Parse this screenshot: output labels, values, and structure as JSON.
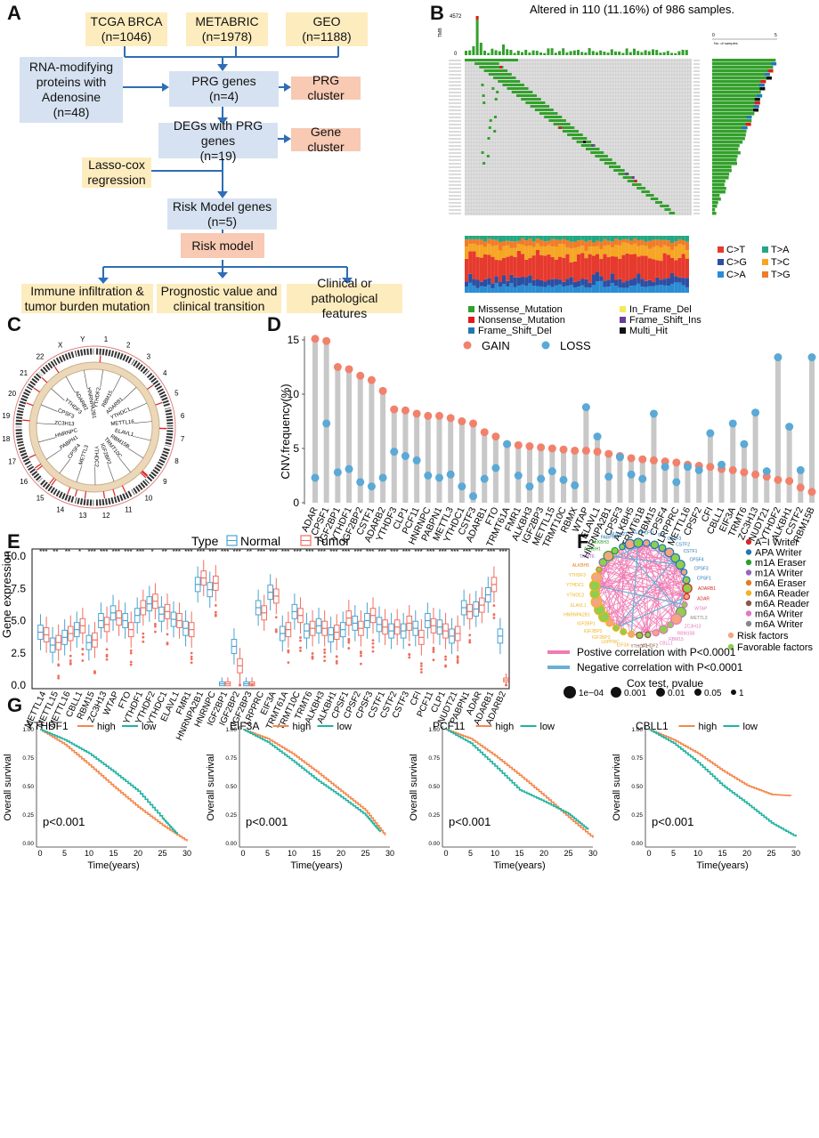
{
  "panels": {
    "a": "A",
    "b": "B",
    "c": "C",
    "d": "D",
    "e": "E",
    "f": "F",
    "g": "G"
  },
  "flowchart": {
    "tcga": "TCGA BRCA",
    "tcga_n": "(n=1046)",
    "metabric": "METABRIC",
    "metabric_n": "(n=1978)",
    "geo": "GEO",
    "geo_n": "(n=1188)",
    "rna": "RNA-modifying proteins with Adenosine",
    "rna_n": "(n=48)",
    "prg": "PRG genes",
    "prg_n": "(n=4)",
    "prg_cluster": "PRG cluster",
    "degs": "DEGs with PRG genes",
    "degs_n": "(n=19)",
    "gene_cluster": "Gene cluster",
    "lasso": "Lasso-cox regression",
    "riskgenes": "Risk Model genes",
    "riskgenes_n": "(n=5)",
    "riskmodel": "Risk model",
    "immune": "Immune infiltration & tumor burden mutation",
    "prognostic": "Prognostic value and clinical transition",
    "clinical": "Clinical or pathological features"
  },
  "oncoplot": {
    "title": "Altered in 110 (11.16%) of 986 samples.",
    "tmb_label": "TMB",
    "tmb_max": "4572",
    "tmb_min": "0",
    "side_axis_label": "No. of samples",
    "side_axis_min": "0",
    "side_axis_max": "5",
    "snv_legend": [
      {
        "label": "C>T",
        "color": "#e63a2e"
      },
      {
        "label": "T>A",
        "color": "#22a884"
      },
      {
        "label": "C>G",
        "color": "#2c4fa3"
      },
      {
        "label": "T>C",
        "color": "#f5a623"
      },
      {
        "label": "C>A",
        "color": "#2a8dd4"
      },
      {
        "label": "T>G",
        "color": "#f07c2a"
      }
    ],
    "variant_legend": [
      {
        "label": "Missense_Mutation",
        "color": "#33a02c"
      },
      {
        "label": "In_Frame_Del",
        "color": "#f3ea5b"
      },
      {
        "label": "Nonsense_Mutation",
        "color": "#e31a1c"
      },
      {
        "label": "Frame_Shift_Ins",
        "color": "#6a3d9a"
      },
      {
        "label": "Frame_Shift_Del",
        "color": "#1f78b4"
      },
      {
        "label": "Multi_Hit",
        "color": "#111111"
      }
    ]
  },
  "circos": {
    "chromosomes": [
      "1",
      "2",
      "3",
      "4",
      "5",
      "6",
      "7",
      "8",
      "9",
      "10",
      "11",
      "12",
      "13",
      "14",
      "15",
      "16",
      "17",
      "18",
      "19",
      "20",
      "21",
      "22",
      "X",
      "Y"
    ],
    "genes": [
      "YTHDF2",
      "RBM15",
      "ADARB1",
      "YTHDC1",
      "METTL16",
      "ELAVL1",
      "RBM15B",
      "TRMT10C",
      "IGF2BP2",
      "YTHDC2",
      "METTL3",
      "CPSF4",
      "PABPN1",
      "HNRNPC",
      "ZC3H13",
      "CPSF3",
      "YTHDF3",
      "ADARB2",
      "HNRNPA2B1"
    ]
  },
  "chart_data": [
    {
      "type": "lollipop",
      "ylabel": "CNV.frequency(%)",
      "ylim": [
        0,
        15
      ],
      "yticks": [
        0,
        5,
        10,
        15
      ],
      "legend": [
        {
          "label": "GAIN",
          "color": "#f2816c"
        },
        {
          "label": "LOSS",
          "color": "#5aa9d6"
        }
      ],
      "categories": [
        "ADAR",
        "CPSF1",
        "IGF2BP1",
        "YTHDF1",
        "IGF2BP2",
        "CSTF1",
        "ADARB2",
        "YTHDF3",
        "CLP1",
        "PCF11",
        "HNRNPC",
        "PABPN1",
        "METTL3",
        "YTHDC1",
        "CSTF3",
        "ADARB1",
        "FTO",
        "TRMT61A",
        "FMR1",
        "ALKBH3",
        "IGF2BP3",
        "METTL15",
        "TRMT10C",
        "RBMX",
        "WTAP",
        "ELAVL1",
        "HNRNPA2B1",
        "CPSF3",
        "ALKBH5",
        "TRMT61B",
        "RBM15",
        "CPSF4",
        "LRPPRC",
        "METTL16",
        "CPSF2",
        "CFI",
        "CBLL1",
        "EIF3A",
        "TRMT6",
        "ZC3H13",
        "NUDT21",
        "YTHDF2",
        "ALKBH1",
        "CSTF2",
        "RBM15B"
      ],
      "series": [
        {
          "name": "GAIN",
          "values": [
            15.1,
            14.9,
            12.5,
            12.3,
            11.7,
            11.3,
            10.3,
            8.6,
            8.5,
            8.2,
            8.0,
            8.0,
            7.8,
            7.5,
            7.3,
            6.5,
            6.1,
            5.4,
            5.3,
            5.2,
            5.1,
            5.0,
            4.9,
            4.8,
            4.8,
            4.7,
            4.5,
            4.3,
            4.1,
            4.0,
            3.9,
            3.8,
            3.7,
            3.5,
            3.4,
            3.3,
            3.1,
            3.0,
            2.8,
            2.6,
            2.4,
            2.1,
            2.0,
            1.4,
            1.0
          ]
        },
        {
          "name": "LOSS",
          "values": [
            2.3,
            7.3,
            2.8,
            3.1,
            1.9,
            1.5,
            2.3,
            4.7,
            4.3,
            3.9,
            2.5,
            2.3,
            2.6,
            1.5,
            0.6,
            2.2,
            3.2,
            5.4,
            2.5,
            1.5,
            2.2,
            2.9,
            2.1,
            1.6,
            8.8,
            6.1,
            2.4,
            4.2,
            2.6,
            2.2,
            8.2,
            3.3,
            1.9,
            3.3,
            3.0,
            6.4,
            3.5,
            7.3,
            5.4,
            8.3,
            2.9,
            13.4,
            7.0,
            3.0,
            13.4
          ]
        }
      ]
    },
    {
      "type": "box",
      "ylabel": "Gene expression",
      "ylim": [
        0,
        10
      ],
      "yticks": [
        "0.0",
        "2.5",
        "5.0",
        "7.5",
        "10.0"
      ],
      "legend_title": "Type",
      "legend": [
        {
          "label": "Normal",
          "color": "#4aa3d3"
        },
        {
          "label": "Tumor",
          "color": "#f06f5f"
        }
      ],
      "categories": [
        "METTL14",
        "METTL15",
        "METTL16",
        "CBLL1",
        "RBM15",
        "ZC3H13",
        "WTAP",
        "FTO",
        "YTHDF1",
        "YTHDF2",
        "YTHDC1",
        "ELAVL1",
        "FMR1",
        "HNRNPA2B1",
        "HNRNPC",
        "IGF2BP1",
        "IGF2BP2",
        "IGF2BP3",
        "LRPPRC",
        "EIF3A",
        "TRMT61A",
        "TRMT10C",
        "TRMT6",
        "ALKBH3",
        "ALKBH1",
        "CPSF1",
        "CPSF2",
        "CPSF3",
        "CSTF1",
        "CSTF2",
        "CSTF3",
        "CFI",
        "PCF11",
        "CLP1",
        "NUDT21",
        "PABPN1",
        "ADAR",
        "ADARB1",
        "ADARB2"
      ],
      "significance": [
        "***",
        "**",
        "**",
        "*",
        "***",
        "***",
        "***",
        "***",
        "***",
        "*",
        "**",
        "***",
        "***",
        "***",
        "***",
        "***",
        "***",
        "**",
        "***",
        "***",
        "***",
        "***",
        "***",
        "***",
        "***",
        "***",
        "***",
        "***",
        "***",
        "***",
        "***",
        "***",
        "***",
        "***",
        "***",
        "***",
        "***",
        "***",
        "***"
      ],
      "normal_median": [
        4.1,
        3.1,
        3.7,
        4.3,
        3.3,
        5.0,
        5.6,
        5.0,
        5.4,
        6.3,
        5.5,
        5.1,
        4.4,
        7.8,
        7.4,
        0.1,
        3.0,
        0.1,
        6.0,
        7.2,
        4.0,
        5.7,
        4.2,
        4.6,
        3.9,
        4.3,
        4.8,
        5.0,
        4.7,
        4.2,
        4.2,
        4.4,
        5.0,
        4.5,
        3.8,
        6.0,
        5.9,
        7.0,
        3.8
      ],
      "tumor_median": [
        3.9,
        3.3,
        4.0,
        4.6,
        3.5,
        4.7,
        5.2,
        4.3,
        6.0,
        6.5,
        5.7,
        5.0,
        4.3,
        8.3,
        7.9,
        0.1,
        1.5,
        0.1,
        5.6,
        6.9,
        4.3,
        5.4,
        4.4,
        4.4,
        4.1,
        5.2,
        4.4,
        5.4,
        4.5,
        4.5,
        4.8,
        3.7,
        4.6,
        4.2,
        4.0,
        5.7,
        6.2,
        7.8,
        0.4
      ]
    }
  ],
  "network": {
    "legend": [
      {
        "label": "A−I Writer",
        "color": "#d62728"
      },
      {
        "label": "APA Writer",
        "color": "#1f77b4"
      },
      {
        "label": "m1A Eraser",
        "color": "#2ca02c"
      },
      {
        "label": "m1A Writer",
        "color": "#9467bd"
      },
      {
        "label": "m6A Eraser",
        "color": "#e57c1f"
      },
      {
        "label": "m6A Reader",
        "color": "#f0b323"
      },
      {
        "label": "m6A Reader",
        "color": "#8c564b"
      },
      {
        "label": "m6A Writer",
        "color": "#e377c2"
      },
      {
        "label": "m6A Writer",
        "color": "#888888"
      }
    ],
    "factors": [
      {
        "label": "Risk factors",
        "color": "#f4a582"
      },
      {
        "label": "Favorable factors",
        "color": "#8fce4e"
      }
    ],
    "pos_corr": "Postive correlation with P<0.0001",
    "neg_corr": "Negative correlation with P<0.0001",
    "cox_title": "Cox test, pvalue",
    "cox_sizes": [
      "1e−04",
      "0.001",
      "0.01",
      "0.05",
      "1"
    ],
    "nodes": [
      {
        "label": "PCF11",
        "color": "#1f77b4"
      },
      {
        "label": "CFI",
        "color": "#1f77b4"
      },
      {
        "label": "CSTF3",
        "color": "#1f77b4"
      },
      {
        "label": "CSTF2",
        "color": "#1f77b4"
      },
      {
        "label": "CSTF1",
        "color": "#1f77b4"
      },
      {
        "label": "CPSF4",
        "color": "#1f77b4"
      },
      {
        "label": "CPSF3",
        "color": "#1f77b4"
      },
      {
        "label": "CPSF1",
        "color": "#1f77b4"
      },
      {
        "label": "ADARB1",
        "color": "#d62728"
      },
      {
        "label": "ADAR",
        "color": "#d62728"
      },
      {
        "label": "WTAP",
        "color": "#e377c2"
      },
      {
        "label": "METTL3",
        "color": "#888888"
      },
      {
        "label": "ZC3H13",
        "color": "#e377c2"
      },
      {
        "label": "RBM15B",
        "color": "#e377c2"
      },
      {
        "label": "RBM15",
        "color": "#e377c2"
      },
      {
        "label": "CBLL1",
        "color": "#e377c2"
      },
      {
        "label": "YTHDF2",
        "color": "#8c564b"
      },
      {
        "label": "YTHDF1",
        "color": "#8c564b"
      },
      {
        "label": "EIF3A",
        "color": "#f0b323"
      },
      {
        "label": "LRPPRC",
        "color": "#f0b323"
      },
      {
        "label": "IGF2BP3",
        "color": "#f0b323"
      },
      {
        "label": "IGF2BP2",
        "color": "#f0b323"
      },
      {
        "label": "IGF2BP1",
        "color": "#f0b323"
      },
      {
        "label": "HNRNPA2B1",
        "color": "#f0b323"
      },
      {
        "label": "ELAVL1",
        "color": "#f0b323"
      },
      {
        "label": "YTHDC2",
        "color": "#f0b323"
      },
      {
        "label": "YTHDC1",
        "color": "#f0b323"
      },
      {
        "label": "YTHDF3",
        "color": "#f0b323"
      },
      {
        "label": "ALKBH5",
        "color": "#e57c1f"
      },
      {
        "label": "TRMT6",
        "color": "#9467bd"
      },
      {
        "label": "ALKBH1",
        "color": "#2ca02c"
      },
      {
        "label": "ALKBH3",
        "color": "#2ca02c"
      },
      {
        "label": "PABPN1",
        "color": "#1f77b4"
      },
      {
        "label": "NUDT21",
        "color": "#1f77b4"
      },
      {
        "label": "CLP1",
        "color": "#1f77b4"
      }
    ]
  },
  "survival": {
    "ylabel": "Overall survival",
    "xlabel": "Time(years)",
    "pvalue": "p<0.001",
    "yticks": [
      "0.00",
      "0.25",
      "0.50",
      "0.75",
      "1.00"
    ],
    "xticks": [
      "0",
      "5",
      "10",
      "15",
      "20",
      "25",
      "30"
    ],
    "high_label": "high",
    "low_label": "low",
    "high_color": "#f4874b",
    "low_color": "#20b2a0",
    "plots": [
      {
        "gene": "YTHDF1",
        "high": [
          [
            0,
            1
          ],
          [
            5,
            0.87
          ],
          [
            10,
            0.69
          ],
          [
            15,
            0.5
          ],
          [
            20,
            0.32
          ],
          [
            25,
            0.16
          ],
          [
            30,
            0.02
          ]
        ],
        "low": [
          [
            0,
            1
          ],
          [
            5,
            0.91
          ],
          [
            10,
            0.79
          ],
          [
            15,
            0.63
          ],
          [
            20,
            0.46
          ],
          [
            25,
            0.22
          ],
          [
            28,
            0.08
          ]
        ]
      },
      {
        "gene": "EIF3A",
        "high": [
          [
            0,
            1
          ],
          [
            5,
            0.92
          ],
          [
            10,
            0.79
          ],
          [
            15,
            0.63
          ],
          [
            20,
            0.46
          ],
          [
            25,
            0.29
          ],
          [
            29,
            0.07
          ]
        ],
        "low": [
          [
            0,
            1
          ],
          [
            5,
            0.89
          ],
          [
            10,
            0.73
          ],
          [
            15,
            0.56
          ],
          [
            20,
            0.41
          ],
          [
            25,
            0.25
          ],
          [
            28,
            0.1
          ]
        ]
      },
      {
        "gene": "PCF11",
        "high": [
          [
            0,
            1
          ],
          [
            5,
            0.92
          ],
          [
            10,
            0.77
          ],
          [
            15,
            0.6
          ],
          [
            20,
            0.42
          ],
          [
            25,
            0.23
          ],
          [
            30,
            0.05
          ]
        ],
        "low": [
          [
            0,
            1
          ],
          [
            5,
            0.88
          ],
          [
            10,
            0.68
          ],
          [
            15,
            0.47
          ],
          [
            20,
            0.37
          ],
          [
            25,
            0.26
          ],
          [
            29,
            0.12
          ]
        ]
      },
      {
        "gene": "CBLL1",
        "high": [
          [
            0,
            1
          ],
          [
            5,
            0.91
          ],
          [
            10,
            0.79
          ],
          [
            15,
            0.64
          ],
          [
            20,
            0.51
          ],
          [
            25,
            0.43
          ],
          [
            29,
            0.42
          ]
        ],
        "low": [
          [
            0,
            1
          ],
          [
            5,
            0.88
          ],
          [
            10,
            0.71
          ],
          [
            15,
            0.51
          ],
          [
            20,
            0.35
          ],
          [
            25,
            0.18
          ],
          [
            30,
            0.06
          ]
        ]
      }
    ]
  }
}
